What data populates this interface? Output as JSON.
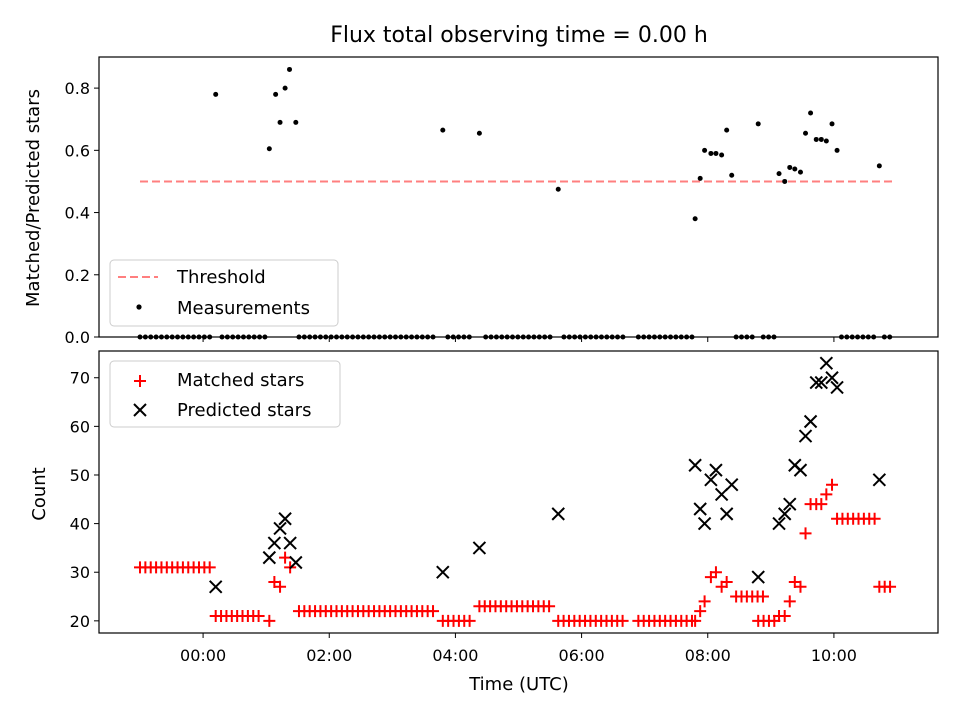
{
  "chart_data": [
    {
      "type": "scatter",
      "title": "Flux total observing time = 0.00 h",
      "xlabel": "",
      "ylabel": "Matched/Predicted stars",
      "xlim": [
        -1.65,
        11.65
      ],
      "ylim": [
        0.0,
        0.9
      ],
      "yticks": [
        0.0,
        0.2,
        0.4,
        0.6,
        0.8
      ],
      "legend": {
        "placement": "lower-left",
        "entries": [
          "Threshold",
          "Measurements"
        ]
      },
      "threshold": {
        "name": "Threshold",
        "value": 0.5,
        "x_range": [
          -1.0,
          10.95
        ],
        "color": "#ff7f7f",
        "style": "dashed"
      },
      "series": [
        {
          "name": "Measurements",
          "color": "#000000",
          "points": [
            [
              0.2,
              0.78
            ],
            [
              1.05,
              0.605
            ],
            [
              1.15,
              0.78
            ],
            [
              1.22,
              0.69
            ],
            [
              1.3,
              0.8
            ],
            [
              1.37,
              0.86
            ],
            [
              1.47,
              0.69
            ],
            [
              3.8,
              0.665
            ],
            [
              4.38,
              0.655
            ],
            [
              5.63,
              0.475
            ],
            [
              7.8,
              0.38
            ],
            [
              7.88,
              0.51
            ],
            [
              7.95,
              0.6
            ],
            [
              8.05,
              0.59
            ],
            [
              8.13,
              0.59
            ],
            [
              8.22,
              0.585
            ],
            [
              8.3,
              0.665
            ],
            [
              8.38,
              0.52
            ],
            [
              8.8,
              0.685
            ],
            [
              9.13,
              0.525
            ],
            [
              9.22,
              0.5
            ],
            [
              9.3,
              0.545
            ],
            [
              9.38,
              0.54
            ],
            [
              9.47,
              0.53
            ],
            [
              9.55,
              0.655
            ],
            [
              9.63,
              0.72
            ],
            [
              9.72,
              0.635
            ],
            [
              9.8,
              0.635
            ],
            [
              9.88,
              0.63
            ],
            [
              9.97,
              0.685
            ],
            [
              10.05,
              0.6
            ],
            [
              10.72,
              0.55
            ]
          ],
          "zero_runs": [
            [
              -1.0,
              0.15
            ],
            [
              0.3,
              1.0
            ],
            [
              1.52,
              3.72
            ],
            [
              3.88,
              4.3
            ],
            [
              4.48,
              5.55
            ],
            [
              5.72,
              6.7
            ],
            [
              6.9,
              7.75
            ],
            [
              8.45,
              8.75
            ],
            [
              8.88,
              9.05
            ],
            [
              10.12,
              10.7
            ],
            [
              10.8,
              10.95
            ]
          ]
        }
      ]
    },
    {
      "type": "scatter",
      "title": "",
      "xlabel": "Time (UTC)",
      "ylabel": "Count",
      "xlim": [
        -1.65,
        11.65
      ],
      "ylim": [
        17.5,
        75.5
      ],
      "yticks": [
        20,
        30,
        40,
        50,
        60,
        70
      ],
      "xticks": [
        0,
        2,
        4,
        6,
        8,
        10
      ],
      "xtick_labels": [
        "00:00",
        "02:00",
        "04:00",
        "06:00",
        "08:00",
        "10:00"
      ],
      "legend": {
        "placement": "upper-left",
        "entries": [
          "Matched stars",
          "Predicted stars"
        ]
      },
      "series": [
        {
          "name": "Matched stars",
          "marker": "plus",
          "color": "#ff0000",
          "runs": [
            [
              -1.0,
              0.15,
              31
            ],
            [
              0.2,
              0.95,
              21
            ],
            [
              1.52,
              3.72,
              22
            ],
            [
              3.8,
              4.3,
              20
            ],
            [
              4.38,
              5.55,
              23
            ],
            [
              5.63,
              6.7,
              20
            ],
            [
              6.9,
              7.75,
              20
            ],
            [
              8.45,
              8.9,
              25
            ],
            [
              8.8,
              9.1,
              20
            ],
            [
              10.05,
              10.72,
              41
            ],
            [
              10.72,
              10.95,
              27
            ]
          ],
          "points": [
            [
              1.05,
              20
            ],
            [
              1.13,
              28
            ],
            [
              1.22,
              27
            ],
            [
              1.3,
              33
            ],
            [
              1.38,
              31
            ],
            [
              7.8,
              20
            ],
            [
              7.88,
              22
            ],
            [
              7.95,
              24
            ],
            [
              8.05,
              29
            ],
            [
              8.13,
              30
            ],
            [
              8.22,
              27
            ],
            [
              8.3,
              28
            ],
            [
              9.13,
              21
            ],
            [
              9.22,
              21
            ],
            [
              9.3,
              24
            ],
            [
              9.38,
              28
            ],
            [
              9.47,
              27
            ],
            [
              9.55,
              38
            ],
            [
              9.63,
              44
            ],
            [
              9.72,
              44
            ],
            [
              9.8,
              44
            ],
            [
              9.88,
              46
            ],
            [
              9.97,
              48
            ]
          ]
        },
        {
          "name": "Predicted stars",
          "marker": "x",
          "color": "#000000",
          "points": [
            [
              0.2,
              27
            ],
            [
              1.05,
              33
            ],
            [
              1.13,
              36
            ],
            [
              1.22,
              39
            ],
            [
              1.3,
              41
            ],
            [
              1.38,
              36
            ],
            [
              1.47,
              32
            ],
            [
              3.8,
              30
            ],
            [
              4.38,
              35
            ],
            [
              5.63,
              42
            ],
            [
              7.8,
              52
            ],
            [
              7.88,
              43
            ],
            [
              7.95,
              40
            ],
            [
              8.05,
              49
            ],
            [
              8.13,
              51
            ],
            [
              8.22,
              46
            ],
            [
              8.3,
              42
            ],
            [
              8.38,
              48
            ],
            [
              8.8,
              29
            ],
            [
              9.13,
              40
            ],
            [
              9.22,
              42
            ],
            [
              9.3,
              44
            ],
            [
              9.38,
              52
            ],
            [
              9.47,
              51
            ],
            [
              9.55,
              58
            ],
            [
              9.63,
              61
            ],
            [
              9.72,
              69
            ],
            [
              9.8,
              69
            ],
            [
              9.88,
              73
            ],
            [
              9.97,
              70
            ],
            [
              10.05,
              68
            ],
            [
              10.72,
              49
            ]
          ]
        }
      ]
    }
  ]
}
